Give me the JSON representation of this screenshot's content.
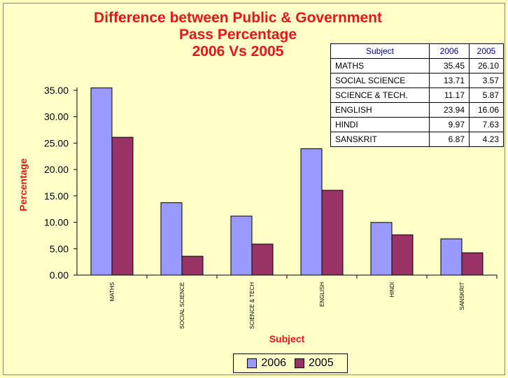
{
  "colors": {
    "series2006": "#9999ff",
    "series2005": "#993366",
    "title": "#e8141b",
    "background": "#ffffc8"
  },
  "chart_data": {
    "type": "bar",
    "title": "Difference between Public & Government Pass Percentage 2006 Vs 2005",
    "title_lines": [
      "Difference between Public & Government",
      "Pass Percentage",
      "2006 Vs 2005"
    ],
    "xlabel": "Subject",
    "ylabel": "Percentage",
    "ylim": [
      0,
      35
    ],
    "yticks": [
      "0.00",
      "5.00",
      "10.00",
      "15.00",
      "20.00",
      "25.00",
      "30.00",
      "35.00"
    ],
    "categories": [
      "MATHS",
      "SOCIAL SCIENCE",
      "SCIENCE & TECH",
      "ENGLISH",
      "HINDI",
      "SANSKRIT"
    ],
    "series": [
      {
        "name": "2006",
        "values": [
          35.45,
          13.71,
          11.17,
          23.94,
          9.97,
          6.87
        ]
      },
      {
        "name": "2005",
        "values": [
          26.1,
          3.57,
          5.87,
          16.06,
          7.63,
          4.23
        ]
      }
    ],
    "legend_position": "bottom"
  },
  "table": {
    "headers": [
      "Subject",
      "2006",
      "2005"
    ],
    "rows": [
      [
        "MATHS",
        "35.45",
        "26.10"
      ],
      [
        "SOCIAL SCIENCE",
        "13.71",
        "3.57"
      ],
      [
        "SCIENCE & TECH.",
        "11.17",
        "5.87"
      ],
      [
        "ENGLISH",
        "23.94",
        "16.06"
      ],
      [
        "HINDI",
        "9.97",
        "7.63"
      ],
      [
        "SANSKRIT",
        "6.87",
        "4.23"
      ]
    ]
  }
}
